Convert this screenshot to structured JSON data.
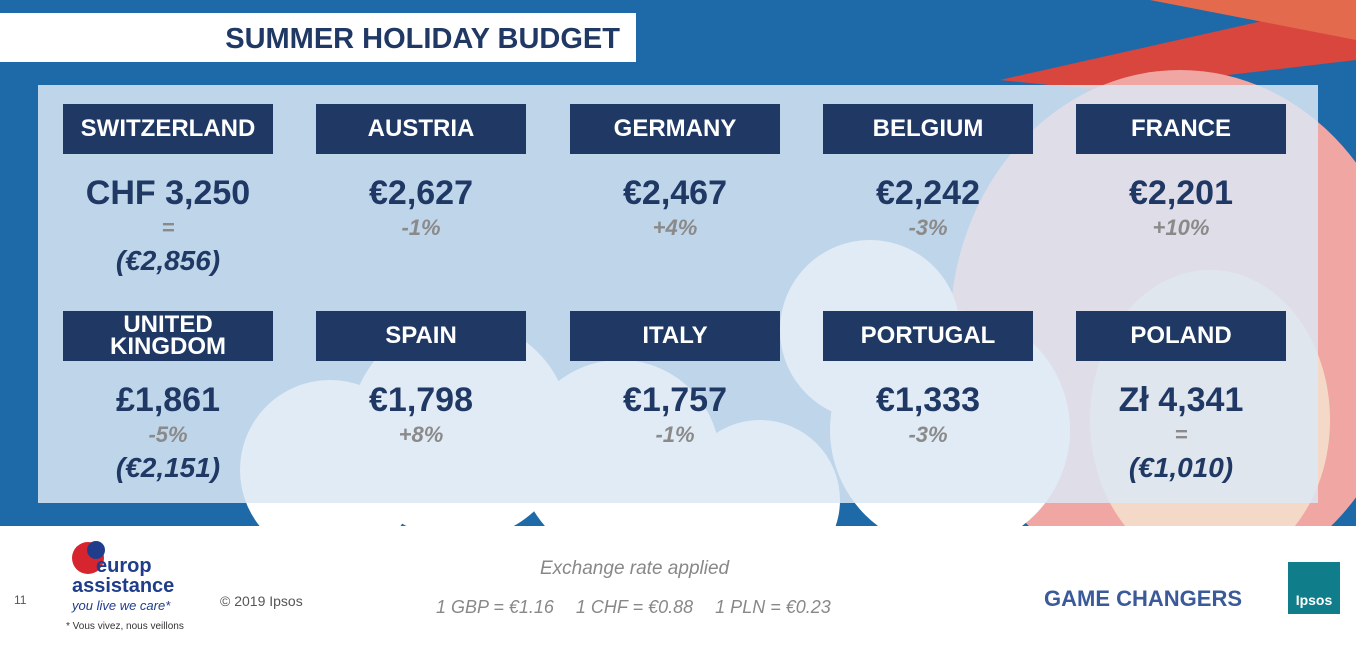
{
  "header": {
    "title": "SUMMER HOLIDAY BUDGET"
  },
  "countries": [
    {
      "name": "SWITZERLAND",
      "amount": "CHF 3,250",
      "change": "=",
      "converted": "(€2,856)"
    },
    {
      "name": "AUSTRIA",
      "amount": "€2,627",
      "change": "-1%"
    },
    {
      "name": "GERMANY",
      "amount": "€2,467",
      "change": "+4%"
    },
    {
      "name": "BELGIUM",
      "amount": "€2,242",
      "change": "-3%"
    },
    {
      "name": "FRANCE",
      "amount": "€2,201",
      "change": "+10%"
    },
    {
      "name": "UNITED KINGDOM",
      "amount": "£1,861",
      "change": "-5%",
      "converted": "(€2,151)"
    },
    {
      "name": "SPAIN",
      "amount": "€1,798",
      "change": "+8%"
    },
    {
      "name": "ITALY",
      "amount": "€1,757",
      "change": "-1%"
    },
    {
      "name": "PORTUGAL",
      "amount": "€1,333",
      "change": "-3%"
    },
    {
      "name": "POLAND",
      "amount": "Zł 4,341",
      "change": "=",
      "converted": "(€1,010)"
    }
  ],
  "footer": {
    "page_number": "11",
    "logo": {
      "line1": "europ",
      "line2": "assistance",
      "tagline": "you live we care*",
      "note": "* Vous vivez, nous veillons"
    },
    "copyright": "© 2019 Ipsos",
    "exchange": {
      "title": "Exchange rate applied",
      "rates": [
        "1 GBP = €1.16",
        "1 CHF = €0.88",
        "1 PLN = €0.23"
      ]
    },
    "slogan": "GAME CHANGERS",
    "brand": "Ipsos"
  }
}
